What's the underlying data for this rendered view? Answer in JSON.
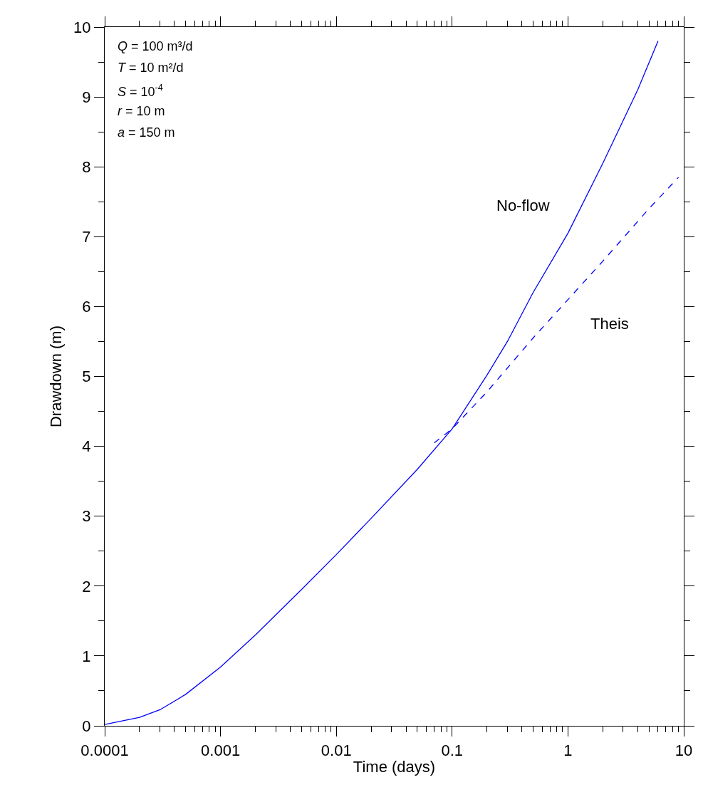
{
  "chart_data": {
    "type": "line",
    "xlabel": "Time (days)",
    "ylabel": "Drawdown (m)",
    "annotations": [
      "Q = 100 m³/d",
      "T = 10 m²/d",
      "S = 10$^{-4}$",
      "r = 10 m",
      "a = 150 m"
    ],
    "series": [
      {
        "name": "No-flow",
        "color": "#0000ff",
        "line_style": "solid",
        "x": [
          0.0001,
          0.0002,
          0.0003,
          0.0005,
          0.001,
          0.002,
          0.005,
          0.01,
          0.02,
          0.05,
          0.1,
          0.2,
          0.3,
          0.5,
          1,
          2,
          4,
          6
        ],
        "values": [
          0.02,
          0.12,
          0.23,
          0.45,
          0.84,
          1.3,
          1.95,
          2.45,
          2.97,
          3.67,
          4.25,
          5.02,
          5.5,
          6.2,
          7.05,
          8.05,
          9.1,
          9.8
        ]
      },
      {
        "name": "Theis",
        "color": "#0000ff",
        "line_style": "dashed",
        "x": [
          0.07,
          0.1,
          0.2,
          0.5,
          1,
          2,
          5,
          9
        ],
        "values": [
          4.05,
          4.25,
          4.78,
          5.55,
          6.1,
          6.65,
          7.4,
          7.85
        ]
      }
    ],
    "log": "x",
    "xlim": [
      0.0001,
      10
    ],
    "ylim": [
      0,
      10
    ],
    "xticks": [
      0.0001,
      {
        "value": 0.0002,
        "label": null
      },
      {
        "value": 0.0003,
        "label": null
      },
      {
        "value": 0.0004,
        "label": null
      },
      {
        "value": 0.0005,
        "label": null
      },
      {
        "value": 0.0006,
        "label": null
      },
      {
        "value": 0.0007,
        "label": null
      },
      {
        "value": 0.0008,
        "label": null
      },
      {
        "value": 0.0009,
        "label": null
      },
      0.001,
      {
        "value": 0.002,
        "label": null
      },
      {
        "value": 0.003,
        "label": null
      },
      {
        "value": 0.004,
        "label": null
      },
      {
        "value": 0.005,
        "label": null
      },
      {
        "value": 0.006,
        "label": null
      },
      {
        "value": 0.007,
        "label": null
      },
      {
        "value": 0.008,
        "label": null
      },
      {
        "value": 0.009,
        "label": null
      },
      0.01,
      {
        "value": 0.02,
        "label": null
      },
      {
        "value": 0.03,
        "label": null
      },
      {
        "value": 0.04,
        "label": null
      },
      {
        "value": 0.05,
        "label": null
      },
      {
        "value": 0.06,
        "label": null
      },
      {
        "value": 0.07,
        "label": null
      },
      {
        "value": 0.08,
        "label": null
      },
      {
        "value": 0.09,
        "label": null
      },
      0.1,
      {
        "value": 0.2,
        "label": null
      },
      {
        "value": 0.3,
        "label": null
      },
      {
        "value": 0.4,
        "label": null
      },
      {
        "value": 0.5,
        "label": null
      },
      {
        "value": 0.6,
        "label": null
      },
      {
        "value": 0.7,
        "label": null
      },
      {
        "value": 0.8,
        "label": null
      },
      {
        "value": 0.9,
        "label": null
      },
      1,
      {
        "value": 2,
        "label": null
      },
      {
        "value": 3,
        "label": null
      },
      {
        "value": 4,
        "label": null
      },
      {
        "value": 5,
        "label": null
      },
      {
        "value": 6,
        "label": null
      },
      {
        "value": 7,
        "label": null
      },
      {
        "value": 8,
        "label": null
      },
      {
        "value": 9,
        "label": null
      },
      10
    ],
    "yticks": [
      0,
      {
        "value": 0.5,
        "label": null
      },
      1,
      {
        "value": 1.5,
        "label": null
      },
      2,
      {
        "value": 2.5,
        "label": null
      },
      3,
      {
        "value": 3.5,
        "label": null
      },
      4,
      {
        "value": 4.5,
        "label": null
      },
      5,
      {
        "value": 5.5,
        "label": null
      },
      6,
      {
        "value": 6.5,
        "label": null
      },
      7,
      {
        "value": 7.5,
        "label": null
      },
      8,
      {
        "value": 8.5,
        "label": null
      },
      9,
      {
        "value": 9.5,
        "label": null
      },
      10
    ],
    "legend": false
  }
}
